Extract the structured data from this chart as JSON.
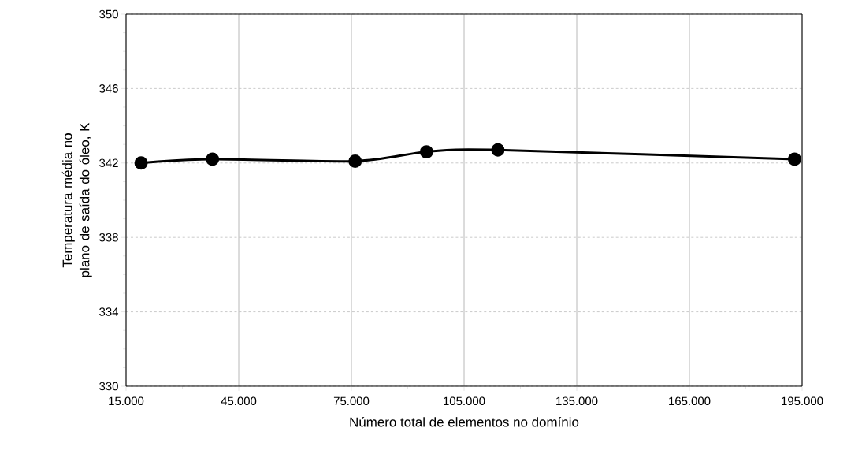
{
  "chart_data": {
    "type": "line",
    "xlabel": "Número total de elementos no domínio",
    "ylabel": "Temperatura média no plano de saída do óleo, K",
    "x": [
      19000,
      38000,
      76000,
      95000,
      114000,
      193000
    ],
    "values": [
      342.0,
      342.2,
      342.1,
      342.6,
      342.7,
      342.2
    ],
    "color": "#000000",
    "marker": "circle",
    "line_style": "solid",
    "grid": true,
    "xlim": [
      15000,
      195000
    ],
    "xticks": [
      {
        "value": 15000,
        "label": "15.000"
      },
      {
        "value": 45000,
        "label": "45.000"
      },
      {
        "value": 75000,
        "label": "75.000"
      },
      {
        "value": 105000,
        "label": "105.000"
      },
      {
        "value": 135000,
        "label": "135.000"
      },
      {
        "value": 165000,
        "label": "165.000"
      },
      {
        "value": 195000,
        "label": "195.000"
      }
    ],
    "ylim": [
      330,
      350
    ],
    "yticks": [
      330,
      334,
      338,
      342,
      346,
      350
    ]
  }
}
